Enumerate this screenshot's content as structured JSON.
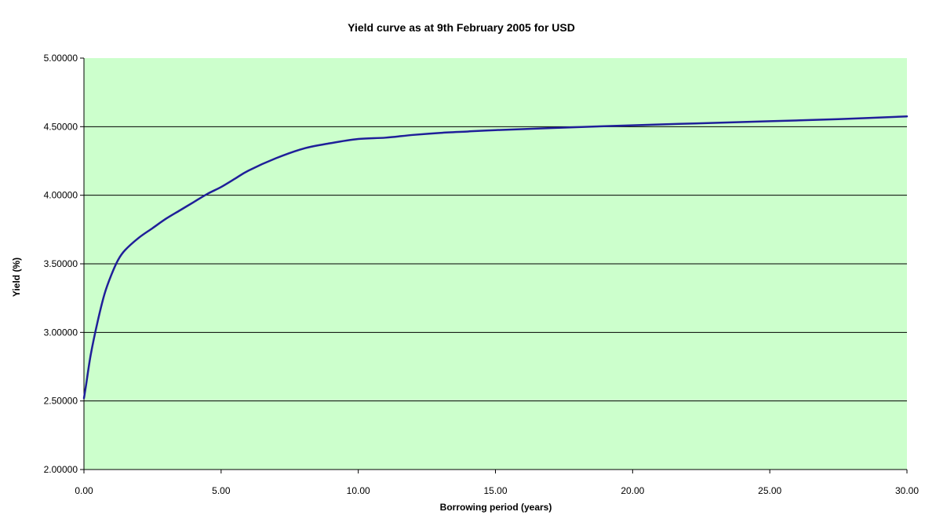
{
  "chart_data": {
    "type": "line",
    "title": "Yield curve as at 9th February 2005 for USD",
    "xlabel": "Borrowing period (years)",
    "ylabel": "Yield (%)",
    "xlim": [
      0,
      30
    ],
    "ylim": [
      2.0,
      5.0
    ],
    "x_ticks": [
      0,
      5,
      10,
      15,
      20,
      25,
      30
    ],
    "x_tick_labels": [
      "0.00",
      "5.00",
      "10.00",
      "15.00",
      "20.00",
      "25.00",
      "30.00"
    ],
    "y_ticks": [
      2.0,
      2.5,
      3.0,
      3.5,
      4.0,
      4.5,
      5.0
    ],
    "y_tick_labels": [
      "2.00000",
      "2.50000",
      "3.00000",
      "3.50000",
      "4.00000",
      "4.50000",
      "5.00000"
    ],
    "grid": "horizontal",
    "legend": "none",
    "series": [
      {
        "x": [
          0.0,
          0.08,
          0.25,
          0.5,
          0.75,
          1.0,
          1.25,
          1.5,
          2.0,
          2.5,
          3.0,
          3.5,
          4.0,
          4.5,
          5.0,
          5.5,
          6.0,
          7.0,
          8.0,
          9.0,
          10.0,
          11.0,
          12.0,
          13.0,
          14.0,
          15.0,
          17.0,
          20.0,
          22.5,
          25.0,
          27.5,
          30.0
        ],
        "y": [
          2.52,
          2.62,
          2.84,
          3.08,
          3.28,
          3.42,
          3.53,
          3.6,
          3.69,
          3.76,
          3.83,
          3.89,
          3.95,
          4.01,
          4.06,
          4.12,
          4.18,
          4.27,
          4.34,
          4.38,
          4.41,
          4.42,
          4.44,
          4.455,
          4.465,
          4.475,
          4.49,
          4.51,
          4.525,
          4.54,
          4.555,
          4.575
        ]
      }
    ],
    "colors": {
      "plot_background": "#ccffcc",
      "series_line": "#1f1f99",
      "gridline": "#000000",
      "axis": "#000000"
    }
  }
}
